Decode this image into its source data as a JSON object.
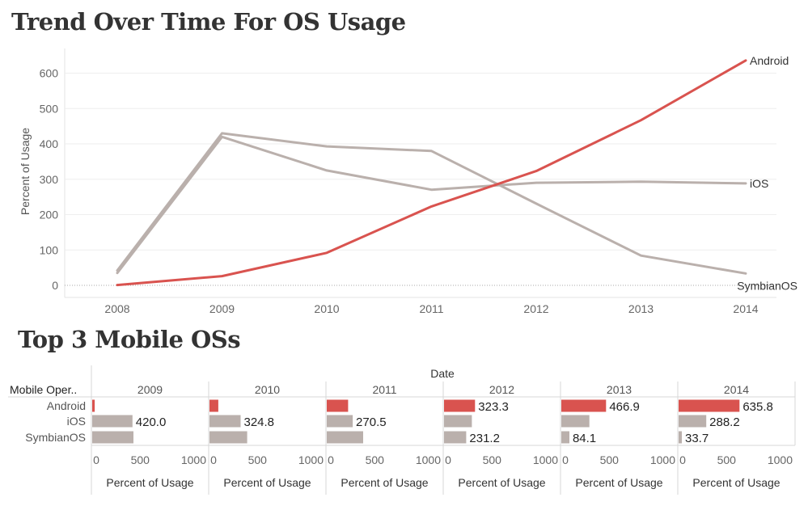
{
  "colors": {
    "highlight": "#d9534f",
    "muted": "#bab0ac",
    "grid": "#eeeeee",
    "axis_text": "#666666"
  },
  "chart_data": [
    {
      "type": "line",
      "title": "Trend Over Time For OS Usage",
      "ylabel": "Percent of Usage",
      "xlabel": "",
      "x": [
        "2008",
        "2009",
        "2010",
        "2011",
        "2012",
        "2013",
        "2014"
      ],
      "ylim": [
        -30,
        660
      ],
      "yticks": [
        "0",
        "100",
        "200",
        "300",
        "400",
        "500",
        "600"
      ],
      "grid": true,
      "series": [
        {
          "name": "Android",
          "color": "#d9534f",
          "values": [
            1,
            26,
            92,
            223,
            323.3,
            466.9,
            635.8
          ]
        },
        {
          "name": "iOS",
          "color": "#bab0ac",
          "values": [
            35,
            420,
            324.8,
            270.5,
            290,
            293,
            288.2
          ]
        },
        {
          "name": "SymbianOS",
          "color": "#bab0ac",
          "values": [
            42,
            430,
            393,
            380,
            231.2,
            84.1,
            33.7
          ]
        }
      ]
    },
    {
      "type": "bar",
      "title": "Top 3 Mobile OSs",
      "column_header": "Date",
      "row_header": "Mobile Oper..",
      "categories": [
        "Android",
        "iOS",
        "SymbianOS"
      ],
      "columns": [
        "2009",
        "2010",
        "2011",
        "2012",
        "2013",
        "2014"
      ],
      "xlim": [
        0,
        1000
      ],
      "xticks": [
        "0",
        "500",
        "1000"
      ],
      "xlabel": "Percent of Usage",
      "values": {
        "Android": [
          26,
          92,
          223,
          323.3,
          466.9,
          635.8
        ],
        "iOS": [
          420.0,
          324.8,
          270.5,
          290,
          293,
          288.2
        ],
        "SymbianOS": [
          430,
          393,
          380,
          231.2,
          84.1,
          33.7
        ]
      },
      "labels": {
        "Android": [
          "",
          "",
          "",
          "323.3",
          "466.9",
          "635.8"
        ],
        "iOS": [
          "420.0",
          "324.8",
          "270.5",
          "",
          "",
          "288.2"
        ],
        "SymbianOS": [
          "",
          "",
          "",
          "231.2",
          "84.1",
          "33.7"
        ]
      }
    }
  ]
}
